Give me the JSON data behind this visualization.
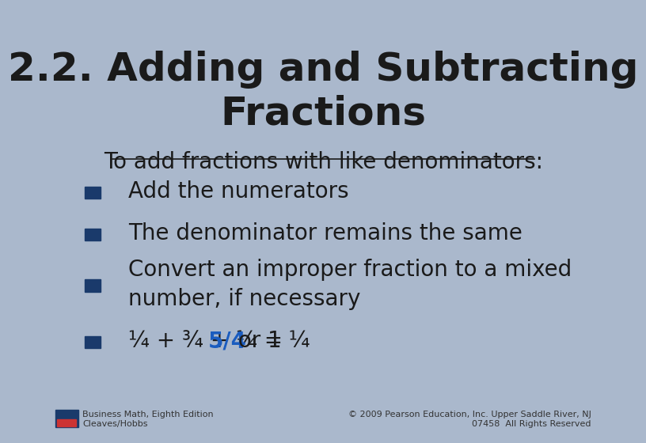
{
  "background_color": "#aab8cc",
  "title_line1": "2.2. Adding and Subtracting",
  "title_line2": "Fractions",
  "title_fontsize": 36,
  "title_color": "#1a1a1a",
  "subtitle": "To add fractions with like denominators:",
  "subtitle_fontsize": 20,
  "subtitle_color": "#1a1a1a",
  "bullet_color": "#1a3a6b",
  "bullet_text_color": "#1a1a1a",
  "bullet_fontsize": 20,
  "bullets": [
    "Add the numerators",
    "The denominator remains the same",
    "Convert an improper fraction to a mixed\nnumber, if necessary",
    "¼ + ¾ + ¼ = "
  ],
  "last_bullet_bold": "5/4",
  "last_bullet_suffix": " or 1 ¼",
  "bold_color": "#1a5cbf",
  "footer_left_line1": "Business Math, Eighth Edition",
  "footer_left_line2": "Cleaves/Hobbs",
  "footer_right_line1": "© 2009 Pearson Education, Inc. Upper Saddle River, NJ",
  "footer_right_line2": "07458  All Rights Reserved",
  "footer_fontsize": 8,
  "footer_color": "#333333",
  "pearson_box_color": "#1a3a6b",
  "pearson_inner_color": "#cc3333"
}
